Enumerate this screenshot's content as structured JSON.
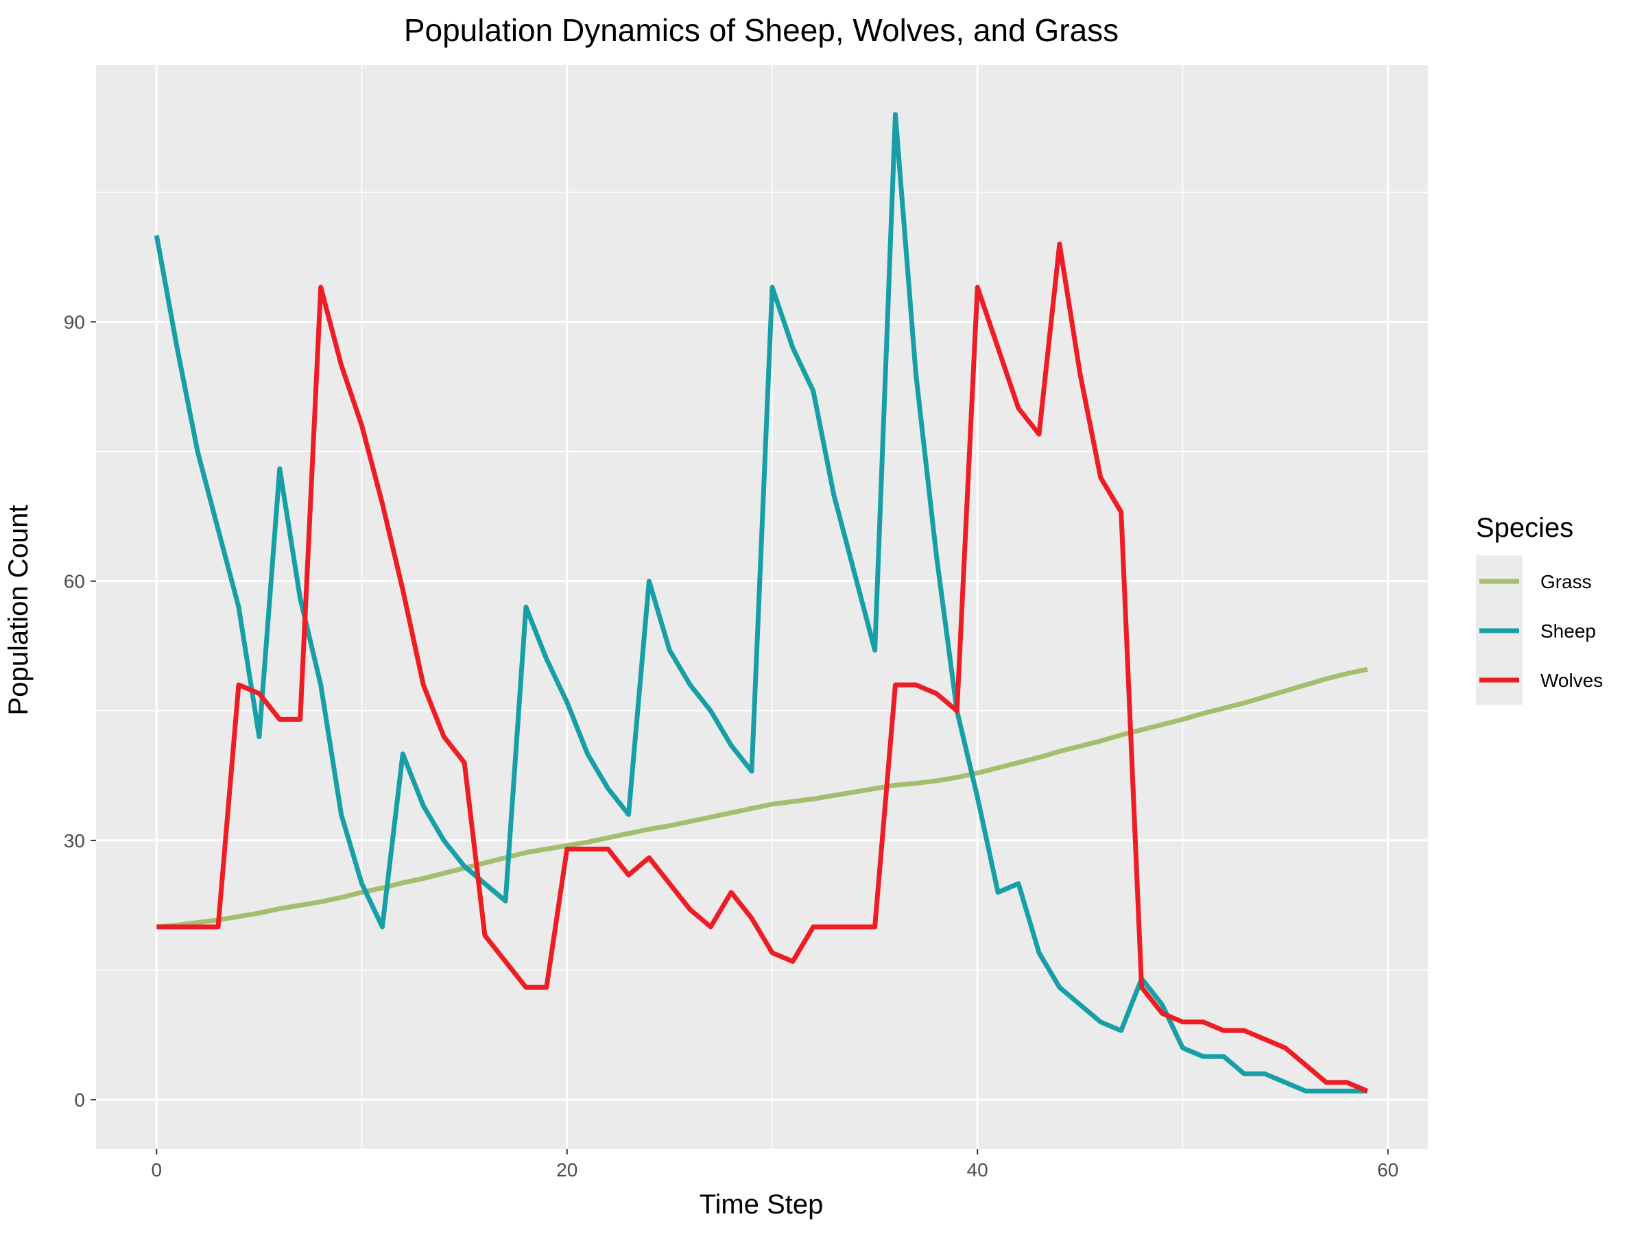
{
  "chart_data": {
    "type": "line",
    "title": "Population Dynamics of Sheep, Wolves, and Grass",
    "xlabel": "Time Step",
    "ylabel": "Population Count",
    "xlim": [
      -2.95,
      61.95
    ],
    "ylim": [
      -5.7,
      119.7
    ],
    "x_ticks": [
      0,
      20,
      40,
      60
    ],
    "y_ticks": [
      0,
      30,
      60,
      90
    ],
    "grid": true,
    "legend": {
      "title": "Species",
      "position": "right"
    },
    "colors": {
      "panel": "#ebebeb",
      "grid": "#ffffff"
    },
    "x": [
      0,
      1,
      2,
      3,
      4,
      5,
      6,
      7,
      8,
      9,
      10,
      11,
      12,
      13,
      14,
      15,
      16,
      17,
      18,
      19,
      20,
      21,
      22,
      23,
      24,
      25,
      26,
      27,
      28,
      29,
      30,
      31,
      32,
      33,
      34,
      35,
      36,
      37,
      38,
      39,
      40,
      41,
      42,
      43,
      44,
      45,
      46,
      47,
      48,
      49,
      50,
      51,
      52,
      53,
      54,
      55,
      56,
      57,
      58,
      59
    ],
    "series": [
      {
        "name": "Grass",
        "color": "#a3be6e",
        "values": [
          20,
          20.2,
          20.5,
          20.8,
          21.2,
          21.6,
          22.1,
          22.5,
          22.9,
          23.4,
          24,
          24.5,
          25.1,
          25.6,
          26.2,
          26.8,
          27.4,
          28,
          28.6,
          29,
          29.4,
          29.8,
          30.3,
          30.8,
          31.3,
          31.7,
          32.2,
          32.7,
          33.2,
          33.7,
          34.2,
          34.5,
          34.8,
          35.2,
          35.6,
          36,
          36.4,
          36.6,
          36.9,
          37.3,
          37.8,
          38.4,
          39,
          39.6,
          40.3,
          40.9,
          41.5,
          42.2,
          42.8,
          43.4,
          44,
          44.7,
          45.3,
          45.9,
          46.6,
          47.3,
          48,
          48.7,
          49.3,
          49.8
        ]
      },
      {
        "name": "Sheep",
        "color": "#179fa8",
        "values": [
          100,
          87,
          75,
          66,
          57,
          42,
          73,
          58,
          48,
          33,
          25,
          20,
          40,
          34,
          30,
          27,
          25,
          23,
          57,
          51,
          46,
          40,
          36,
          33,
          60,
          52,
          48,
          45,
          41,
          38,
          94,
          87,
          82,
          70,
          61,
          52,
          114,
          84,
          63,
          45,
          35,
          24,
          25,
          17,
          13,
          11,
          9,
          8,
          14,
          11,
          6,
          5,
          5,
          3,
          3,
          2,
          1,
          1,
          1,
          1
        ]
      },
      {
        "name": "Wolves",
        "color": "#ee1c25",
        "values": [
          20,
          20,
          20,
          20,
          48,
          47,
          44,
          44,
          94,
          85,
          78,
          69,
          59,
          48,
          42,
          39,
          19,
          16,
          13,
          13,
          29,
          29,
          29,
          26,
          28,
          25,
          22,
          20,
          24,
          21,
          17,
          16,
          20,
          20,
          20,
          20,
          48,
          48,
          47,
          45,
          94,
          87,
          80,
          77,
          99,
          84,
          72,
          68,
          13,
          10,
          9,
          9,
          8,
          8,
          7,
          6,
          4,
          2,
          2,
          1
        ]
      }
    ]
  }
}
